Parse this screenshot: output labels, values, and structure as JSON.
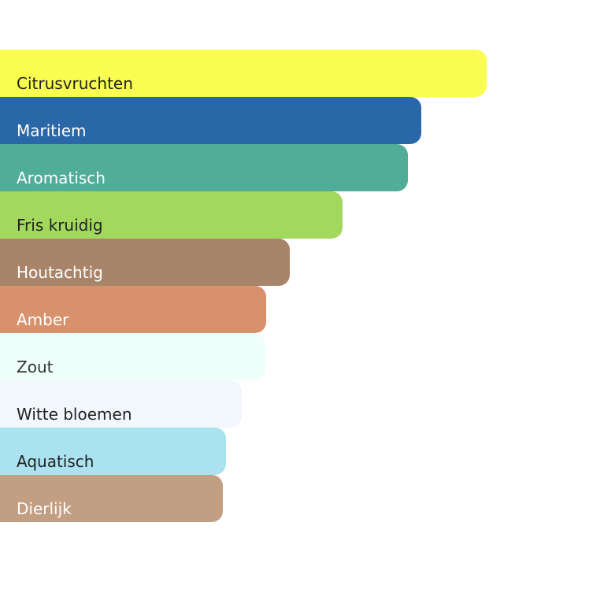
{
  "chart_data": {
    "type": "bar",
    "orientation": "horizontal",
    "grid": false,
    "axes_visible": false,
    "value_scale": "relative to largest bar = 100",
    "categories": [
      "Citrusvruchten",
      "Maritiem",
      "Aromatisch",
      "Fris kruidig",
      "Houtachtig",
      "Amber",
      "Zout",
      "Witte bloemen",
      "Aquatisch",
      "Dierlijk"
    ],
    "values": [
      100,
      86.6,
      83.8,
      70.4,
      59.5,
      54.7,
      54.5,
      49.7,
      46.4,
      45.8
    ],
    "colors": [
      "#f9fd4f",
      "#2a67a6",
      "#52ad98",
      "#a3d85e",
      "#a8856a",
      "#d8916d",
      "#effffa",
      "#f2f7fd",
      "#aae3ef",
      "#c29e82"
    ],
    "label_colors": [
      "#222222",
      "#ffffff",
      "#ffffff",
      "#222222",
      "#ffffff",
      "#ffffff",
      "#333333",
      "#222222",
      "#222222",
      "#ffffff"
    ]
  }
}
